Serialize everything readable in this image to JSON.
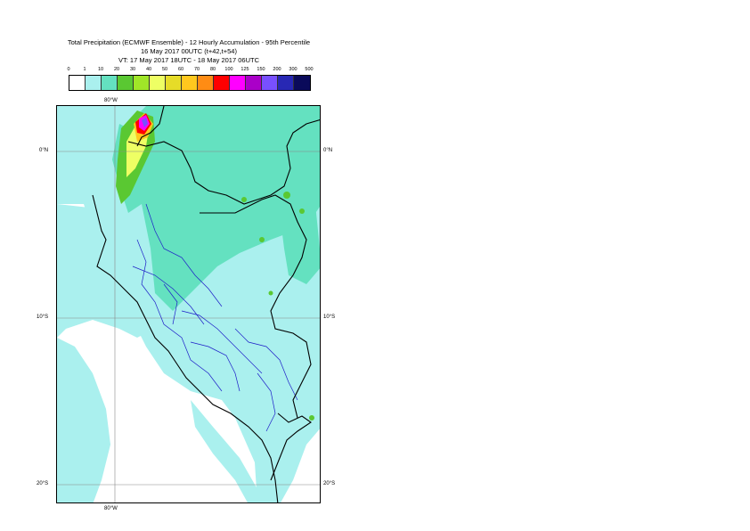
{
  "title": {
    "line1": "Total Precipitation (ECMWF Ensemble) - 12 Hourly Accumulation - 95th Percentile",
    "line2": "16 May 2017 00UTC (t+42,t+54)",
    "line3": "VT: 17 May 2017 18UTC - 18 May 2017 06UTC"
  },
  "legend": {
    "ticks": [
      "0",
      "1",
      "10",
      "20",
      "30",
      "40",
      "50",
      "60",
      "70",
      "80",
      "100",
      "125",
      "150",
      "200",
      "300",
      "500"
    ],
    "colors": [
      "#ffffff",
      "#aaf0ee",
      "#64e1c0",
      "#5ac832",
      "#a0e628",
      "#eeff64",
      "#e6dc28",
      "#ffc81e",
      "#ff8c14",
      "#ff0000",
      "#ff00ff",
      "#aa00c8",
      "#7850ff",
      "#2828b4",
      "#0a0a5a"
    ]
  },
  "axes": {
    "lon_top": "80°W",
    "lon_bottom": "80°W",
    "lat_0_left": "0°N",
    "lat_0_right": "0°N",
    "lat_10_left": "10°S",
    "lat_10_right": "10°S",
    "lat_20_left": "20°S",
    "lat_20_right": "20°S"
  },
  "map_colors": {
    "light": "#aaf0ee",
    "medium": "#64e1c0",
    "green": "#5ac832",
    "lime": "#a0e628",
    "yellow": "#eeff64",
    "orange": "#ffc81e",
    "red": "#ff0000",
    "magenta": "#ff00ff",
    "purple": "#7850ff",
    "country_border": "#000000",
    "province_border": "#1e1ec8",
    "grid": "#888888"
  }
}
